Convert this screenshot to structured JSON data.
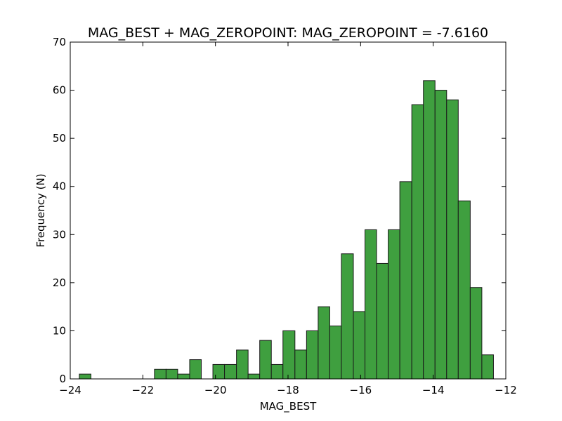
{
  "chart_data": {
    "type": "bar",
    "title": "MAG_BEST + MAG_ZEROPOINT: MAG_ZEROPOINT = -7.6160",
    "xlabel": "MAG_BEST",
    "ylabel": "Frequency (N)",
    "xlim": [
      -24,
      -12
    ],
    "ylim": [
      0,
      70
    ],
    "xticks": [
      -24,
      -22,
      -20,
      -18,
      -16,
      -14,
      -12
    ],
    "xtick_labels": [
      "−24",
      "−22",
      "−20",
      "−18",
      "−16",
      "−14",
      "−12"
    ],
    "yticks": [
      0,
      10,
      20,
      30,
      40,
      50,
      60,
      70
    ],
    "ytick_labels": [
      "0",
      "10",
      "20",
      "30",
      "40",
      "50",
      "60",
      "70"
    ],
    "bar_color": "#3f9f3f",
    "edge_color": "#1a1a1a",
    "grid": false,
    "bins": [
      {
        "start": -23.75,
        "end": -23.43,
        "value": 1
      },
      {
        "start": -21.68,
        "end": -21.36,
        "value": 2
      },
      {
        "start": -21.36,
        "end": -21.04,
        "value": 2
      },
      {
        "start": -21.04,
        "end": -20.71,
        "value": 1
      },
      {
        "start": -20.71,
        "end": -20.39,
        "value": 4
      },
      {
        "start": -20.07,
        "end": -19.75,
        "value": 3
      },
      {
        "start": -19.75,
        "end": -19.42,
        "value": 3
      },
      {
        "start": -19.42,
        "end": -19.1,
        "value": 6
      },
      {
        "start": -19.1,
        "end": -18.78,
        "value": 1
      },
      {
        "start": -18.78,
        "end": -18.46,
        "value": 8
      },
      {
        "start": -18.46,
        "end": -18.14,
        "value": 3
      },
      {
        "start": -18.14,
        "end": -17.81,
        "value": 10
      },
      {
        "start": -17.81,
        "end": -17.49,
        "value": 6
      },
      {
        "start": -17.49,
        "end": -17.17,
        "value": 10
      },
      {
        "start": -17.17,
        "end": -16.85,
        "value": 15
      },
      {
        "start": -16.85,
        "end": -16.53,
        "value": 11
      },
      {
        "start": -16.53,
        "end": -16.2,
        "value": 26
      },
      {
        "start": -16.2,
        "end": -15.88,
        "value": 14
      },
      {
        "start": -15.88,
        "end": -15.56,
        "value": 31
      },
      {
        "start": -15.56,
        "end": -15.24,
        "value": 24
      },
      {
        "start": -15.24,
        "end": -14.92,
        "value": 31
      },
      {
        "start": -14.92,
        "end": -14.59,
        "value": 41
      },
      {
        "start": -14.59,
        "end": -14.27,
        "value": 57
      },
      {
        "start": -14.27,
        "end": -13.95,
        "value": 62
      },
      {
        "start": -13.95,
        "end": -13.63,
        "value": 60
      },
      {
        "start": -13.63,
        "end": -13.31,
        "value": 58
      },
      {
        "start": -13.31,
        "end": -12.98,
        "value": 37
      },
      {
        "start": -12.98,
        "end": -12.66,
        "value": 19
      },
      {
        "start": -12.66,
        "end": -12.34,
        "value": 5
      }
    ]
  }
}
